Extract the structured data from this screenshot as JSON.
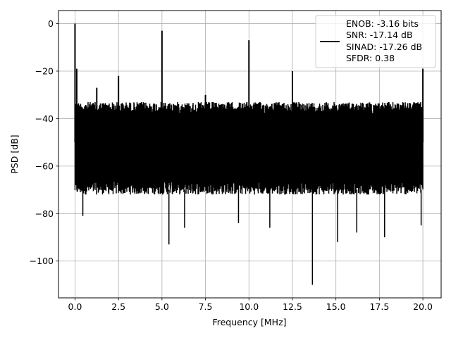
{
  "chart_data": {
    "type": "line",
    "title": "",
    "xlabel": "Frequency [MHz]",
    "ylabel": "PSD [dB]",
    "xlim": [
      -0.95,
      21.05
    ],
    "ylim": [
      -115.5,
      5.5
    ],
    "xticks": [
      0.0,
      2.5,
      5.0,
      7.5,
      10.0,
      12.5,
      15.0,
      17.5,
      20.0
    ],
    "xtick_labels": [
      "0.0",
      "2.5",
      "5.0",
      "7.5",
      "10.0",
      "12.5",
      "15.0",
      "17.5",
      "20.0"
    ],
    "yticks": [
      0,
      -20,
      -40,
      -60,
      -80,
      -100
    ],
    "ytick_labels": [
      "0",
      "−20",
      "−40",
      "−60",
      "−80",
      "−100"
    ],
    "grid": true,
    "legend_position": "top-right",
    "legend_entries": [
      "ENOB: -3.16 bits",
      "SNR: -17.14 dB",
      "SINAD: -17.26 dB",
      "SFDR: 0.38"
    ],
    "line_color": "#000000",
    "noise_floor": {
      "upper_envelope_db": -33,
      "typical_low_db": -70,
      "mean_db": -50
    },
    "peaks": [
      {
        "x": 0.0,
        "y": 0
      },
      {
        "x": 0.1,
        "y": -19
      },
      {
        "x": 1.25,
        "y": -27
      },
      {
        "x": 2.5,
        "y": -22
      },
      {
        "x": 5.0,
        "y": -3
      },
      {
        "x": 7.5,
        "y": -30
      },
      {
        "x": 10.0,
        "y": -7
      },
      {
        "x": 12.5,
        "y": -20
      },
      {
        "x": 20.0,
        "y": -19
      }
    ],
    "dips": [
      {
        "x": 0.45,
        "y": -81
      },
      {
        "x": 5.4,
        "y": -93
      },
      {
        "x": 6.3,
        "y": -86
      },
      {
        "x": 9.4,
        "y": -84
      },
      {
        "x": 11.2,
        "y": -86
      },
      {
        "x": 13.65,
        "y": -110
      },
      {
        "x": 15.1,
        "y": -92
      },
      {
        "x": 16.2,
        "y": -88
      },
      {
        "x": 17.8,
        "y": -90
      },
      {
        "x": 19.9,
        "y": -85
      }
    ]
  }
}
